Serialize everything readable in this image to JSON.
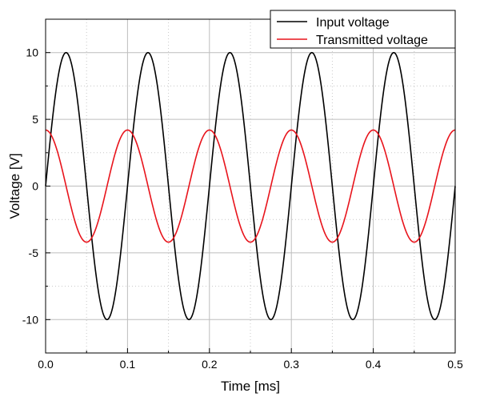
{
  "chart_data": {
    "type": "line",
    "xlabel": "Time [ms]",
    "ylabel": "Voltage [V]",
    "xlim": [
      0.0,
      0.5
    ],
    "ylim": [
      -12.5,
      12.5
    ],
    "x_ticks": [
      0.0,
      0.1,
      0.2,
      0.3,
      0.4,
      0.5
    ],
    "x_tick_labels": [
      "0.0",
      "0.1",
      "0.2",
      "0.3",
      "0.4",
      "0.5"
    ],
    "y_ticks": [
      -10,
      -5,
      0,
      5,
      10
    ],
    "y_tick_labels": [
      "-10",
      "-5",
      "0",
      "5",
      "10"
    ],
    "grid": true,
    "legend_position": "top-right",
    "series": [
      {
        "name": "Input voltage",
        "color": "#000000",
        "function": "sine",
        "amplitude": 10,
        "frequency_khz": 10,
        "phase_rad": 0
      },
      {
        "name": "Transmitted voltage",
        "color": "#e8141c",
        "function": "cosine",
        "amplitude": 4.2,
        "frequency_khz": 10,
        "phase_rad": 0
      }
    ]
  }
}
